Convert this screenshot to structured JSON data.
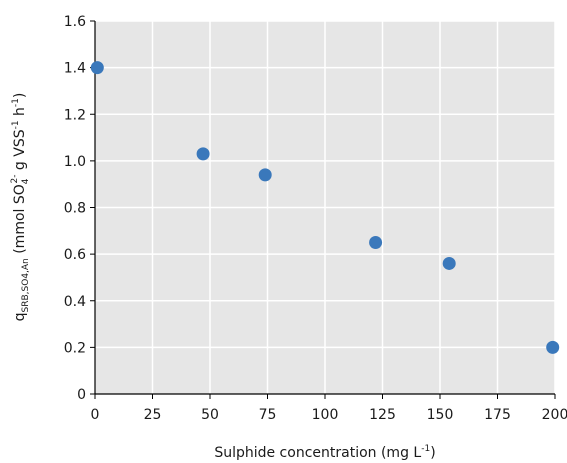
{
  "chart_data": {
    "type": "scatter",
    "xlabel": {
      "base": "Sulphide concentration (mg L",
      "sup": "-1",
      "close": ")"
    },
    "ylabel": {
      "q": "q",
      "q_sub": "SRB,SO4,An",
      "part1": " (mmol SO",
      "so4_sub": "4",
      "so4_sup": "2-",
      "part2": " g VSS",
      "vss_sup": "-1",
      "part3": " h",
      "h_sup": "-1",
      "close": ")"
    },
    "xlim": [
      0,
      200
    ],
    "ylim": [
      0,
      1.6
    ],
    "x_ticks": [
      "0",
      "25",
      "50",
      "75",
      "100",
      "125",
      "150",
      "175",
      "200"
    ],
    "y_ticks": [
      "0",
      "0.2",
      "0.4",
      "0.6",
      "0.8",
      "1.0",
      "1.2",
      "1.4",
      "1.6"
    ],
    "grid": true,
    "plot_background": "#e6e6e6",
    "grid_color": "#ffffff",
    "marker_color": "#3a78bb",
    "points": [
      {
        "x": 1,
        "y": 1.4
      },
      {
        "x": 47,
        "y": 1.03
      },
      {
        "x": 74,
        "y": 0.94
      },
      {
        "x": 122,
        "y": 0.65
      },
      {
        "x": 154,
        "y": 0.56
      },
      {
        "x": 199,
        "y": 0.2
      }
    ]
  }
}
